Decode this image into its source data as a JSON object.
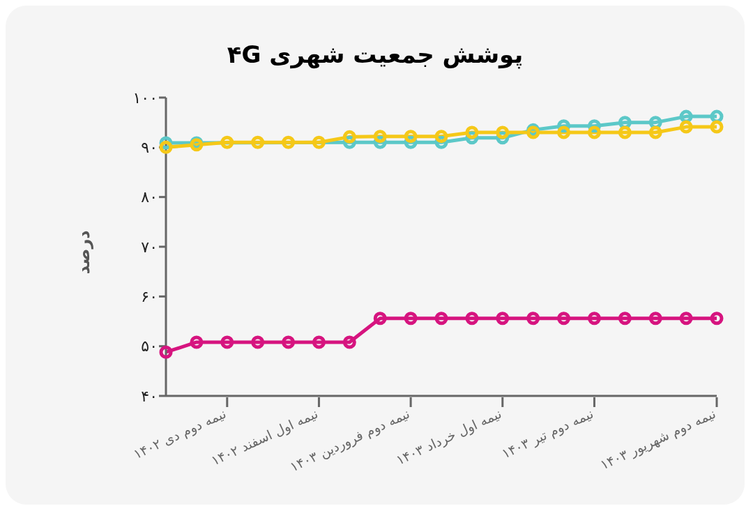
{
  "chart_data": {
    "type": "line",
    "title": "پوشش جمعیت شهری ۴G",
    "ylabel": "درصد",
    "categories": [
      null,
      null,
      "نیمه دوم دی ۱۴۰۲",
      null,
      null,
      "نیمه اول اسفند ۱۴۰۲",
      null,
      null,
      "نیمه دوم فروردین ۱۴۰۳",
      null,
      null,
      "نیمه اول خرداد ۱۴۰۳",
      null,
      null,
      "نیمه دوم تیر ۱۴۰۳",
      null,
      null,
      null,
      "نیمه دوم شهریور ۱۴۰۳"
    ],
    "series": [
      {
        "color": "#d6147f",
        "values": [
          48.8,
          50.8,
          50.8,
          50.8,
          50.8,
          50.8,
          50.8,
          55.6,
          55.6,
          55.6,
          55.6,
          55.6,
          55.6,
          55.6,
          55.6,
          55.6,
          55.6,
          55.6,
          55.6
        ]
      },
      {
        "color": "#5cc8c8",
        "values": [
          90.9,
          90.9,
          null,
          null,
          null,
          null,
          91,
          91,
          91,
          91,
          91.9,
          91.9,
          93.5,
          94.3,
          94.3,
          95,
          95,
          96.2,
          96.2
        ]
      },
      {
        "color": "#f5c818",
        "values": [
          90,
          90.5,
          91,
          91,
          91,
          91,
          92.1,
          92.2,
          92.2,
          92.2,
          93,
          93,
          93,
          93,
          93,
          93,
          93,
          94.1,
          94.1
        ]
      }
    ],
    "ylim": [
      40,
      100
    ],
    "yticks": [
      {
        "value": 40,
        "label": "۴۰"
      },
      {
        "value": 50,
        "label": "۵۰"
      },
      {
        "value": 60,
        "label": "۶۰"
      },
      {
        "value": 70,
        "label": "۷۰"
      },
      {
        "value": 80,
        "label": "۸۰"
      },
      {
        "value": 90,
        "label": "۹۰"
      },
      {
        "value": 100,
        "label": "۱۰۰"
      }
    ],
    "grid": false,
    "marker": "circle",
    "line_style": "solid"
  }
}
